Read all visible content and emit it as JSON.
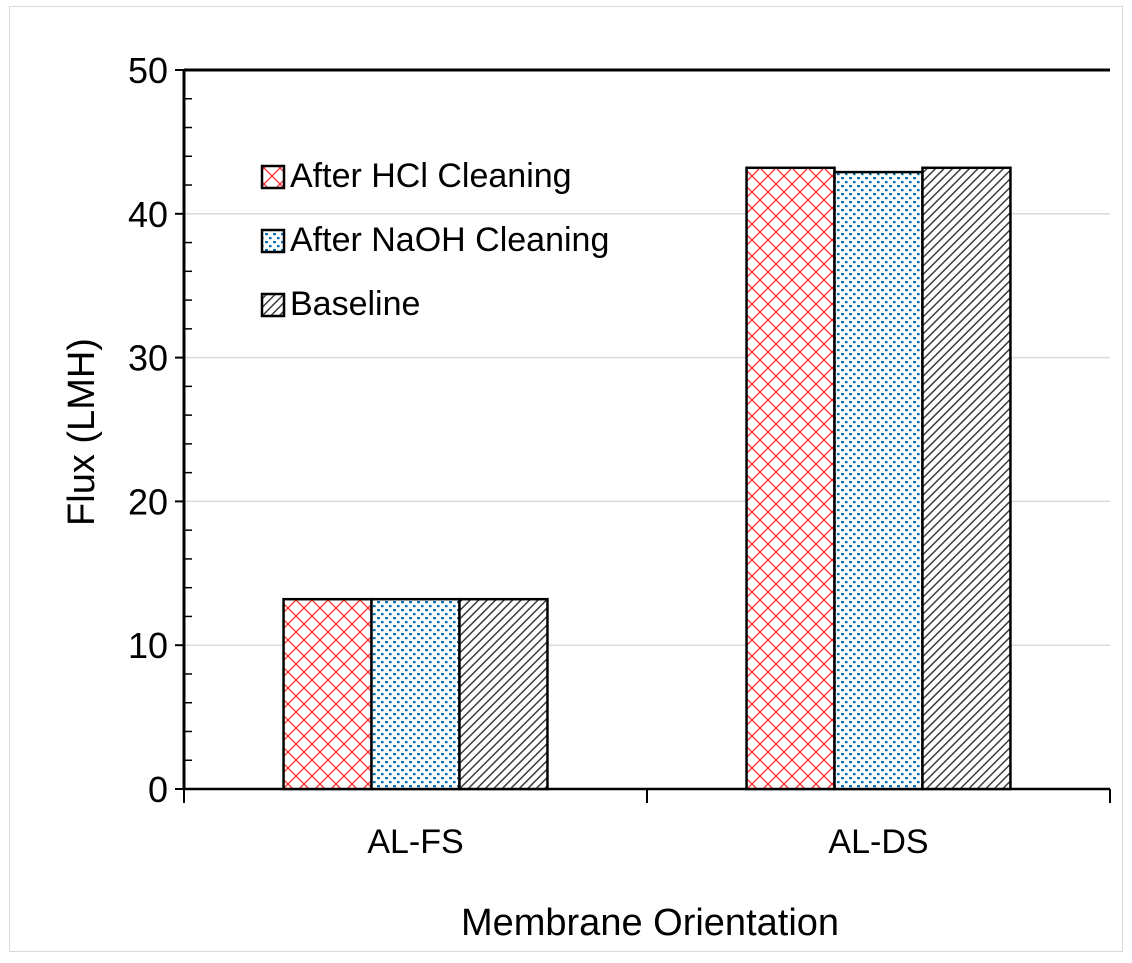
{
  "chart_data": {
    "type": "bar",
    "title": "",
    "xlabel": "Membrane Orientation",
    "ylabel": "Flux (LMH)",
    "categories": [
      "AL-FS",
      "AL-DS"
    ],
    "series": [
      {
        "name": "After HCl Cleaning",
        "values": [
          13.2,
          43.2
        ],
        "color": "#ff0000",
        "pattern": "crosshatch"
      },
      {
        "name": "After NaOH Cleaning",
        "values": [
          13.2,
          42.9
        ],
        "color": "#0070c0",
        "pattern": "dots"
      },
      {
        "name": "Baseline",
        "values": [
          13.2,
          43.2
        ],
        "color": "#404040",
        "pattern": "diagonal-stripes"
      }
    ],
    "ylim": [
      0,
      50
    ],
    "yticks": [
      0,
      10,
      20,
      30,
      40,
      50
    ],
    "grid": true,
    "legend_position": "top-left"
  }
}
